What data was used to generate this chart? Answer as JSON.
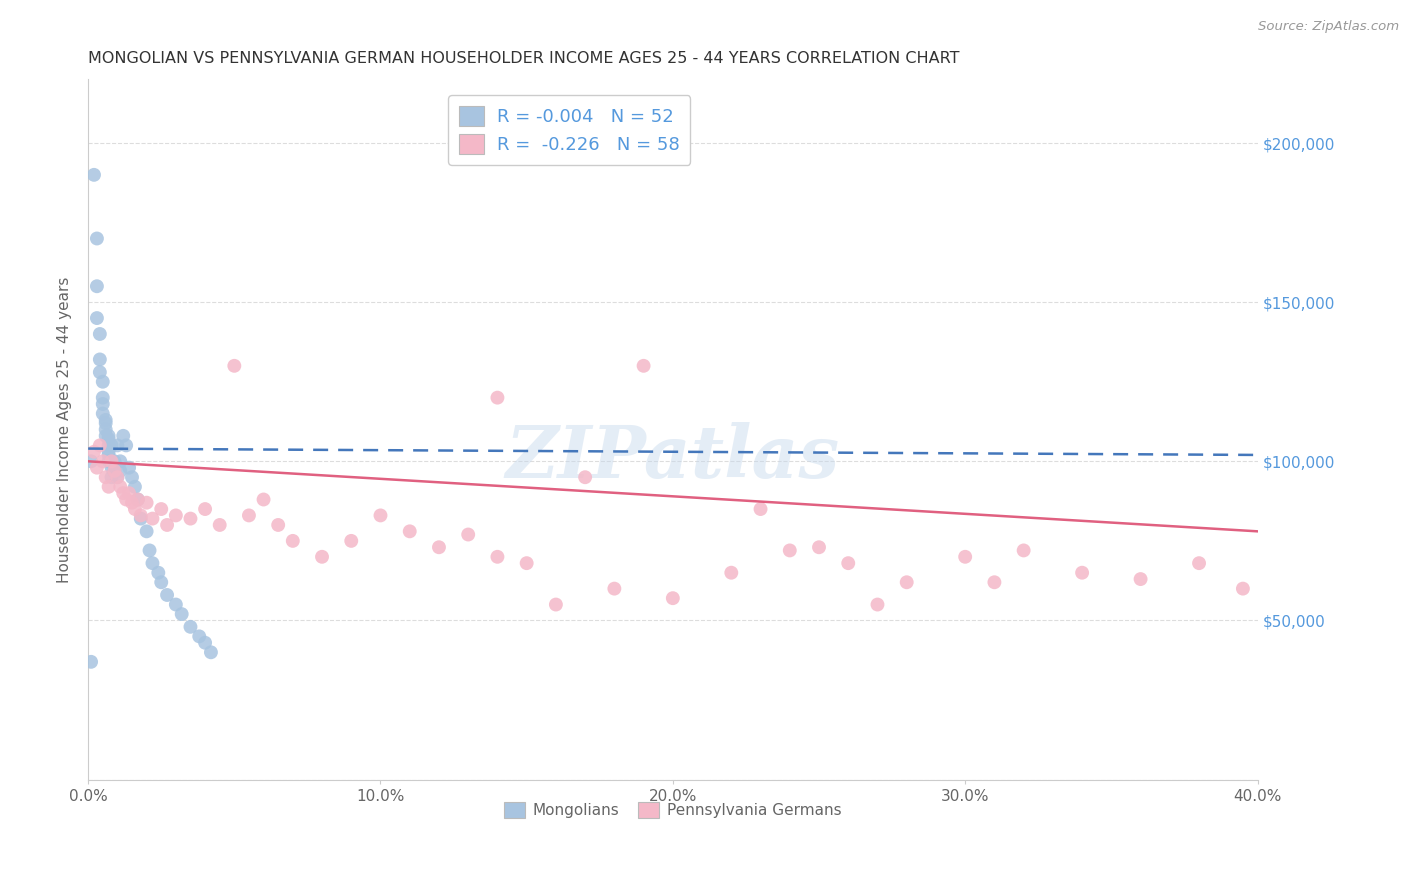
{
  "title": "MONGOLIAN VS PENNSYLVANIA GERMAN HOUSEHOLDER INCOME AGES 25 - 44 YEARS CORRELATION CHART",
  "source": "Source: ZipAtlas.com",
  "ylabel": "Householder Income Ages 25 - 44 years",
  "xlim": [
    0.0,
    0.4
  ],
  "ylim": [
    0,
    220000
  ],
  "mongolian_color": "#a8c4e0",
  "pa_german_color": "#f4b8c8",
  "mongolian_line_color": "#4477bb",
  "pa_german_line_color": "#e06080",
  "watermark_text": "ZIPatlas",
  "mongolian_x": [
    0.001,
    0.002,
    0.003,
    0.003,
    0.003,
    0.004,
    0.004,
    0.004,
    0.005,
    0.005,
    0.005,
    0.005,
    0.006,
    0.006,
    0.006,
    0.006,
    0.007,
    0.007,
    0.007,
    0.007,
    0.007,
    0.007,
    0.008,
    0.008,
    0.008,
    0.008,
    0.009,
    0.009,
    0.01,
    0.01,
    0.011,
    0.011,
    0.012,
    0.013,
    0.014,
    0.015,
    0.016,
    0.017,
    0.018,
    0.02,
    0.021,
    0.022,
    0.024,
    0.025,
    0.027,
    0.03,
    0.032,
    0.035,
    0.038,
    0.04,
    0.042,
    0.001
  ],
  "mongolian_y": [
    37000,
    190000,
    170000,
    155000,
    145000,
    140000,
    132000,
    128000,
    125000,
    120000,
    118000,
    115000,
    113000,
    112000,
    110000,
    108000,
    107000,
    105000,
    103000,
    102000,
    100000,
    108000,
    105000,
    100000,
    98000,
    95000,
    100000,
    97000,
    105000,
    95000,
    100000,
    97000,
    108000,
    105000,
    98000,
    95000,
    92000,
    88000,
    82000,
    78000,
    72000,
    68000,
    65000,
    62000,
    58000,
    55000,
    52000,
    48000,
    45000,
    43000,
    40000,
    100000
  ],
  "pa_german_x": [
    0.002,
    0.003,
    0.004,
    0.005,
    0.006,
    0.007,
    0.008,
    0.009,
    0.01,
    0.011,
    0.012,
    0.013,
    0.014,
    0.015,
    0.016,
    0.017,
    0.018,
    0.02,
    0.022,
    0.025,
    0.027,
    0.03,
    0.035,
    0.04,
    0.045,
    0.05,
    0.055,
    0.06,
    0.065,
    0.07,
    0.08,
    0.09,
    0.1,
    0.11,
    0.12,
    0.13,
    0.14,
    0.15,
    0.16,
    0.18,
    0.2,
    0.22,
    0.24,
    0.26,
    0.28,
    0.3,
    0.32,
    0.34,
    0.36,
    0.38,
    0.395,
    0.14,
    0.27,
    0.31,
    0.17,
    0.25,
    0.19,
    0.23
  ],
  "pa_german_y": [
    103000,
    98000,
    105000,
    100000,
    95000,
    92000,
    100000,
    97000,
    95000,
    92000,
    90000,
    88000,
    90000,
    87000,
    85000,
    88000,
    83000,
    87000,
    82000,
    85000,
    80000,
    83000,
    82000,
    85000,
    80000,
    130000,
    83000,
    88000,
    80000,
    75000,
    70000,
    75000,
    83000,
    78000,
    73000,
    77000,
    70000,
    68000,
    55000,
    60000,
    57000,
    65000,
    72000,
    68000,
    62000,
    70000,
    72000,
    65000,
    63000,
    68000,
    60000,
    120000,
    55000,
    62000,
    95000,
    73000,
    130000,
    85000
  ],
  "mongo_trend_x0": 0.0,
  "mongo_trend_x1": 0.4,
  "mongo_trend_y0": 104000,
  "mongo_trend_y1": 102000,
  "pa_trend_x0": 0.0,
  "pa_trend_x1": 0.4,
  "pa_trend_y0": 100000,
  "pa_trend_y1": 78000,
  "background_color": "#ffffff",
  "grid_color": "#dddddd",
  "title_color": "#333333",
  "axis_color": "#666666",
  "right_axis_color": "#5599dd",
  "legend_label1": "R = -0.004   N = 52",
  "legend_label2": "R =  -0.226   N = 58",
  "bottom_label1": "Mongolians",
  "bottom_label2": "Pennsylvania Germans"
}
